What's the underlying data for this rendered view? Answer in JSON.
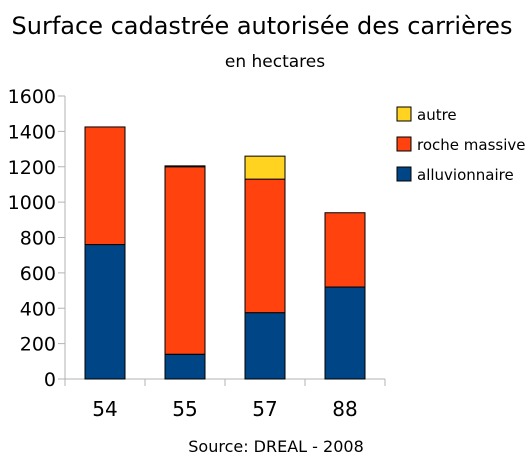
{
  "chart_data": {
    "type": "bar",
    "stacked": true,
    "title": "Surface cadastrée autorisée des carrières",
    "subtitle": "en hectares",
    "source": "Source: DREAL - 2008",
    "categories": [
      "54",
      "55",
      "57",
      "88"
    ],
    "series": [
      {
        "name": "alluvionnaire",
        "values": [
          760,
          140,
          375,
          520
        ],
        "color": "#004586"
      },
      {
        "name": "roche massive",
        "values": [
          665,
          1060,
          755,
          420
        ],
        "color": "#ff420e"
      },
      {
        "name": "autre",
        "values": [
          0,
          5,
          130,
          0
        ],
        "color": "#ffd320"
      }
    ],
    "ylim": [
      0,
      1600
    ],
    "yticks": [
      "0",
      "200",
      "400",
      "600",
      "800",
      "1000",
      "1200",
      "1400",
      "1600"
    ],
    "grid": false,
    "legend_position": "right"
  }
}
